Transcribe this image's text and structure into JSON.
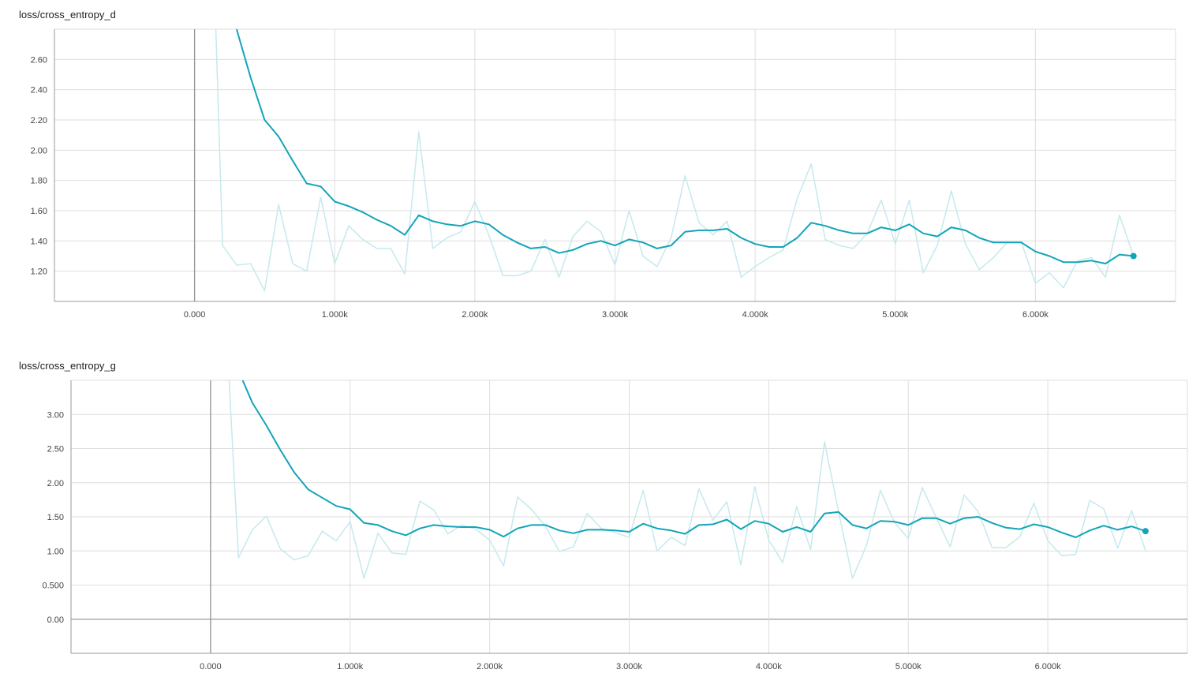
{
  "colors": {
    "smoothed": "#12a5b8",
    "raw": "#c5e9ee",
    "grid": "#dddddd",
    "axis": "#999999"
  },
  "chart_data": [
    {
      "type": "line",
      "title": "loss/cross_entropy_d",
      "xlim": [
        -1000,
        7000
      ],
      "ylim": [
        1.0,
        2.8
      ],
      "x_ticks": [
        0,
        1000,
        2000,
        3000,
        4000,
        5000,
        6000
      ],
      "x_tick_labels": [
        "0.000",
        "1.000k",
        "2.000k",
        "3.000k",
        "4.000k",
        "5.000k",
        "6.000k"
      ],
      "y_ticks": [
        1.2,
        1.4,
        1.6,
        1.8,
        2.0,
        2.2,
        2.4,
        2.6
      ],
      "y_tick_labels": [
        "1.20",
        "1.40",
        "1.60",
        "1.80",
        "2.00",
        "2.20",
        "2.40",
        "2.60"
      ],
      "grid": true,
      "series": [
        {
          "role": "raw",
          "x": [
            150,
            200,
            300,
            400,
            500,
            600,
            700,
            800,
            900,
            1000,
            1100,
            1200,
            1300,
            1400,
            1500,
            1600,
            1700,
            1800,
            1900,
            2000,
            2100,
            2200,
            2300,
            2400,
            2500,
            2600,
            2700,
            2800,
            2900,
            3000,
            3100,
            3200,
            3300,
            3400,
            3500,
            3600,
            3700,
            3800,
            3900,
            4000,
            4100,
            4200,
            4300,
            4400,
            4500,
            4600,
            4700,
            4800,
            4900,
            5000,
            5100,
            5200,
            5300,
            5400,
            5500,
            5600,
            5700,
            5800,
            5900,
            6000,
            6100,
            6200,
            6300,
            6400,
            6500,
            6600,
            6700
          ],
          "y": [
            2.85,
            1.37,
            1.24,
            1.25,
            1.07,
            1.64,
            1.25,
            1.2,
            1.69,
            1.25,
            1.5,
            1.41,
            1.35,
            1.35,
            1.18,
            2.12,
            1.35,
            1.42,
            1.46,
            1.66,
            1.44,
            1.17,
            1.17,
            1.2,
            1.41,
            1.16,
            1.43,
            1.53,
            1.46,
            1.24,
            1.6,
            1.3,
            1.23,
            1.42,
            1.83,
            1.52,
            1.44,
            1.53,
            1.16,
            1.23,
            1.29,
            1.34,
            1.68,
            1.91,
            1.41,
            1.37,
            1.35,
            1.45,
            1.67,
            1.38,
            1.67,
            1.19,
            1.37,
            1.73,
            1.38,
            1.21,
            1.29,
            1.39,
            1.39,
            1.12,
            1.19,
            1.09,
            1.27,
            1.29,
            1.16,
            1.57,
            1.3
          ]
        },
        {
          "role": "smoothed",
          "x": [
            300,
            400,
            500,
            600,
            700,
            800,
            900,
            1000,
            1100,
            1200,
            1300,
            1400,
            1500,
            1600,
            1700,
            1800,
            1900,
            2000,
            2100,
            2200,
            2300,
            2400,
            2500,
            2600,
            2700,
            2800,
            2900,
            3000,
            3100,
            3200,
            3300,
            3400,
            3500,
            3600,
            3700,
            3800,
            3900,
            4000,
            4100,
            4200,
            4300,
            4400,
            4500,
            4600,
            4700,
            4800,
            4900,
            5000,
            5100,
            5200,
            5300,
            5400,
            5500,
            5600,
            5700,
            5800,
            5900,
            6000,
            6100,
            6200,
            6300,
            6400,
            6500,
            6600,
            6700
          ],
          "y": [
            2.8,
            2.48,
            2.2,
            2.09,
            1.93,
            1.78,
            1.76,
            1.66,
            1.63,
            1.59,
            1.54,
            1.5,
            1.44,
            1.57,
            1.53,
            1.51,
            1.5,
            1.53,
            1.51,
            1.44,
            1.39,
            1.35,
            1.36,
            1.32,
            1.34,
            1.38,
            1.4,
            1.37,
            1.41,
            1.39,
            1.35,
            1.37,
            1.46,
            1.47,
            1.47,
            1.48,
            1.42,
            1.38,
            1.36,
            1.36,
            1.42,
            1.52,
            1.5,
            1.47,
            1.45,
            1.45,
            1.49,
            1.47,
            1.51,
            1.45,
            1.43,
            1.49,
            1.47,
            1.42,
            1.39,
            1.39,
            1.39,
            1.33,
            1.3,
            1.26,
            1.26,
            1.27,
            1.25,
            1.31,
            1.3
          ]
        }
      ]
    },
    {
      "type": "line",
      "title": "loss/cross_entropy_g",
      "xlim": [
        -1000,
        7000
      ],
      "ylim": [
        -0.5,
        3.5
      ],
      "x_ticks": [
        0,
        1000,
        2000,
        3000,
        4000,
        5000,
        6000
      ],
      "x_tick_labels": [
        "0.000",
        "1.000k",
        "2.000k",
        "3.000k",
        "4.000k",
        "5.000k",
        "6.000k"
      ],
      "y_ticks": [
        0,
        0.5,
        1.0,
        1.5,
        2.0,
        2.5,
        3.0
      ],
      "y_tick_labels": [
        "0.00",
        "0.500",
        "1.00",
        "1.50",
        "2.00",
        "2.50",
        "3.00"
      ],
      "grid": true,
      "series": [
        {
          "role": "raw",
          "x": [
            130,
            200,
            300,
            400,
            500,
            600,
            700,
            800,
            900,
            1000,
            1100,
            1200,
            1300,
            1400,
            1500,
            1600,
            1700,
            1800,
            1900,
            2000,
            2100,
            2200,
            2300,
            2400,
            2500,
            2600,
            2700,
            2800,
            2900,
            3000,
            3100,
            3200,
            3300,
            3400,
            3500,
            3600,
            3700,
            3800,
            3900,
            4000,
            4100,
            4200,
            4300,
            4400,
            4500,
            4600,
            4700,
            4800,
            4900,
            5000,
            5100,
            5200,
            5300,
            5400,
            5500,
            5600,
            5700,
            5800,
            5900,
            6000,
            6100,
            6200,
            6300,
            6400,
            6500,
            6600,
            6700
          ],
          "y": [
            3.6,
            0.9,
            1.31,
            1.51,
            1.03,
            0.87,
            0.93,
            1.29,
            1.15,
            1.43,
            0.6,
            1.26,
            0.97,
            0.95,
            1.73,
            1.6,
            1.25,
            1.38,
            1.32,
            1.16,
            0.78,
            1.79,
            1.61,
            1.36,
            0.99,
            1.06,
            1.55,
            1.33,
            1.27,
            1.2,
            1.89,
            1.0,
            1.2,
            1.08,
            1.91,
            1.45,
            1.72,
            0.8,
            1.94,
            1.16,
            0.83,
            1.65,
            1.02,
            2.6,
            1.58,
            0.6,
            1.08,
            1.89,
            1.42,
            1.18,
            1.93,
            1.49,
            1.06,
            1.82,
            1.58,
            1.05,
            1.05,
            1.21,
            1.7,
            1.15,
            0.93,
            0.95,
            1.74,
            1.62,
            1.04,
            1.59,
            1.01
          ]
        },
        {
          "role": "smoothed",
          "x": [
            230,
            300,
            400,
            500,
            600,
            700,
            800,
            900,
            1000,
            1100,
            1200,
            1300,
            1400,
            1500,
            1600,
            1700,
            1800,
            1900,
            2000,
            2100,
            2200,
            2300,
            2400,
            2500,
            2600,
            2700,
            2800,
            2900,
            3000,
            3100,
            3200,
            3300,
            3400,
            3500,
            3600,
            3700,
            3800,
            3900,
            4000,
            4100,
            4200,
            4300,
            4400,
            4500,
            4600,
            4700,
            4800,
            4900,
            5000,
            5100,
            5200,
            5300,
            5400,
            5500,
            5600,
            5700,
            5800,
            5900,
            6000,
            6100,
            6200,
            6300,
            6400,
            6500,
            6600,
            6700
          ],
          "y": [
            3.5,
            3.17,
            2.84,
            2.48,
            2.15,
            1.9,
            1.78,
            1.66,
            1.61,
            1.41,
            1.38,
            1.29,
            1.23,
            1.33,
            1.38,
            1.36,
            1.35,
            1.35,
            1.31,
            1.21,
            1.33,
            1.38,
            1.38,
            1.3,
            1.26,
            1.31,
            1.31,
            1.3,
            1.28,
            1.4,
            1.33,
            1.3,
            1.25,
            1.38,
            1.39,
            1.46,
            1.32,
            1.44,
            1.4,
            1.28,
            1.35,
            1.28,
            1.55,
            1.57,
            1.38,
            1.33,
            1.44,
            1.43,
            1.38,
            1.48,
            1.48,
            1.4,
            1.48,
            1.5,
            1.41,
            1.34,
            1.32,
            1.39,
            1.35,
            1.27,
            1.2,
            1.3,
            1.37,
            1.31,
            1.36,
            1.29
          ]
        }
      ]
    }
  ]
}
